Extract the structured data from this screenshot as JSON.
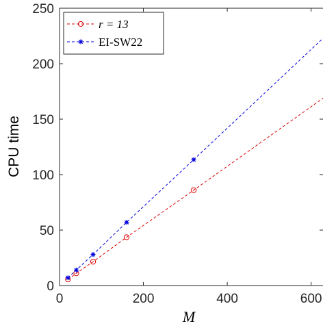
{
  "chart_data": {
    "type": "line",
    "xlabel": "M",
    "ylabel": "CPU time",
    "xlim": [
      0,
      630
    ],
    "ylim": [
      0,
      250
    ],
    "xticks": [
      0,
      200,
      400,
      600
    ],
    "yticks": [
      0,
      50,
      100,
      150,
      200,
      250
    ],
    "legend_position": "top-left",
    "grid": false,
    "series": [
      {
        "name": "r = 13",
        "color": "#dd0000",
        "marker": "circle",
        "line_style": "dashed",
        "points": [
          [
            20,
            5.5
          ],
          [
            40,
            11
          ],
          [
            80,
            21.5
          ],
          [
            160,
            43.5
          ],
          [
            320,
            86
          ],
          [
            640,
            172
          ]
        ]
      },
      {
        "name": "EI-SW22",
        "color": "#0000dd",
        "marker": "star",
        "line_style": "dashed",
        "points": [
          [
            20,
            7
          ],
          [
            40,
            14
          ],
          [
            80,
            28
          ],
          [
            160,
            57
          ],
          [
            320,
            113.5
          ],
          [
            640,
            227
          ]
        ]
      }
    ]
  }
}
